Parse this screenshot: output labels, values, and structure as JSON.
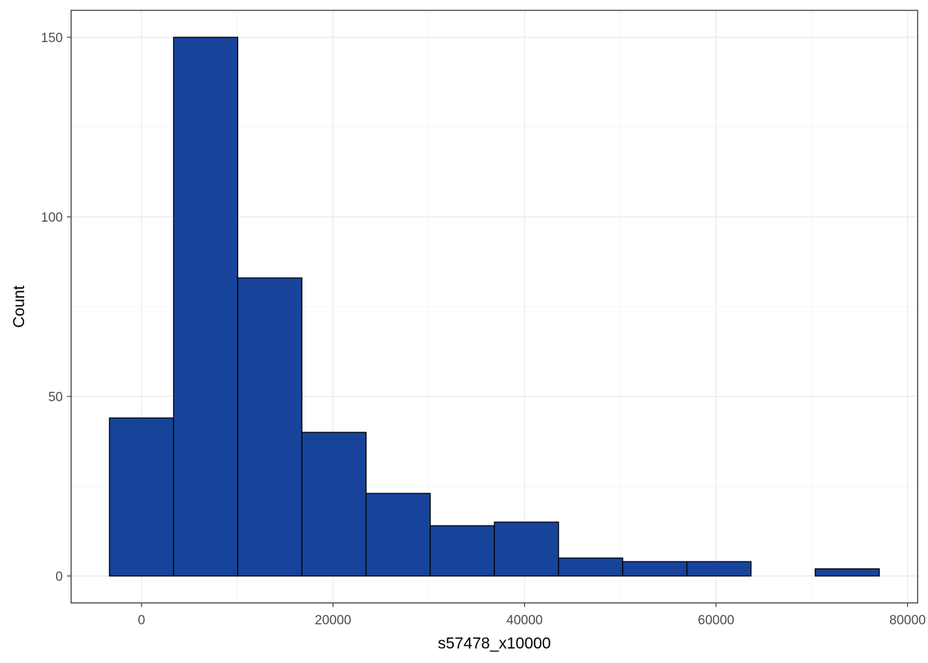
{
  "chart_data": {
    "type": "bar",
    "subtype": "histogram",
    "title": "",
    "xlabel": "s57478_x10000",
    "ylabel": "Count",
    "bin_width": 6700,
    "bins": [
      {
        "x0": -3350,
        "x1": 3350,
        "count": 44
      },
      {
        "x0": 3350,
        "x1": 10050,
        "count": 150
      },
      {
        "x0": 10050,
        "x1": 16750,
        "count": 83
      },
      {
        "x0": 16750,
        "x1": 23450,
        "count": 40
      },
      {
        "x0": 23450,
        "x1": 30150,
        "count": 23
      },
      {
        "x0": 30150,
        "x1": 36850,
        "count": 14
      },
      {
        "x0": 36850,
        "x1": 43550,
        "count": 15
      },
      {
        "x0": 43550,
        "x1": 50250,
        "count": 5
      },
      {
        "x0": 50250,
        "x1": 56950,
        "count": 4
      },
      {
        "x0": 56950,
        "x1": 63650,
        "count": 4
      },
      {
        "x0": 63650,
        "x1": 70350,
        "count": 0
      },
      {
        "x0": 70350,
        "x1": 77050,
        "count": 2
      }
    ],
    "xlim": [
      -7350,
      81050
    ],
    "ylim": [
      -7.5,
      157.5
    ],
    "x_ticks": [
      0,
      20000,
      40000,
      60000,
      80000
    ],
    "x_tick_labels": [
      "0",
      "20000",
      "40000",
      "60000",
      "80000"
    ],
    "y_ticks": [
      0,
      50,
      100,
      150
    ],
    "y_tick_labels": [
      "0",
      "50",
      "100",
      "150"
    ],
    "bar_color": "#17449a",
    "bar_edge_color": "#000000",
    "grid": true,
    "legend": "none"
  }
}
